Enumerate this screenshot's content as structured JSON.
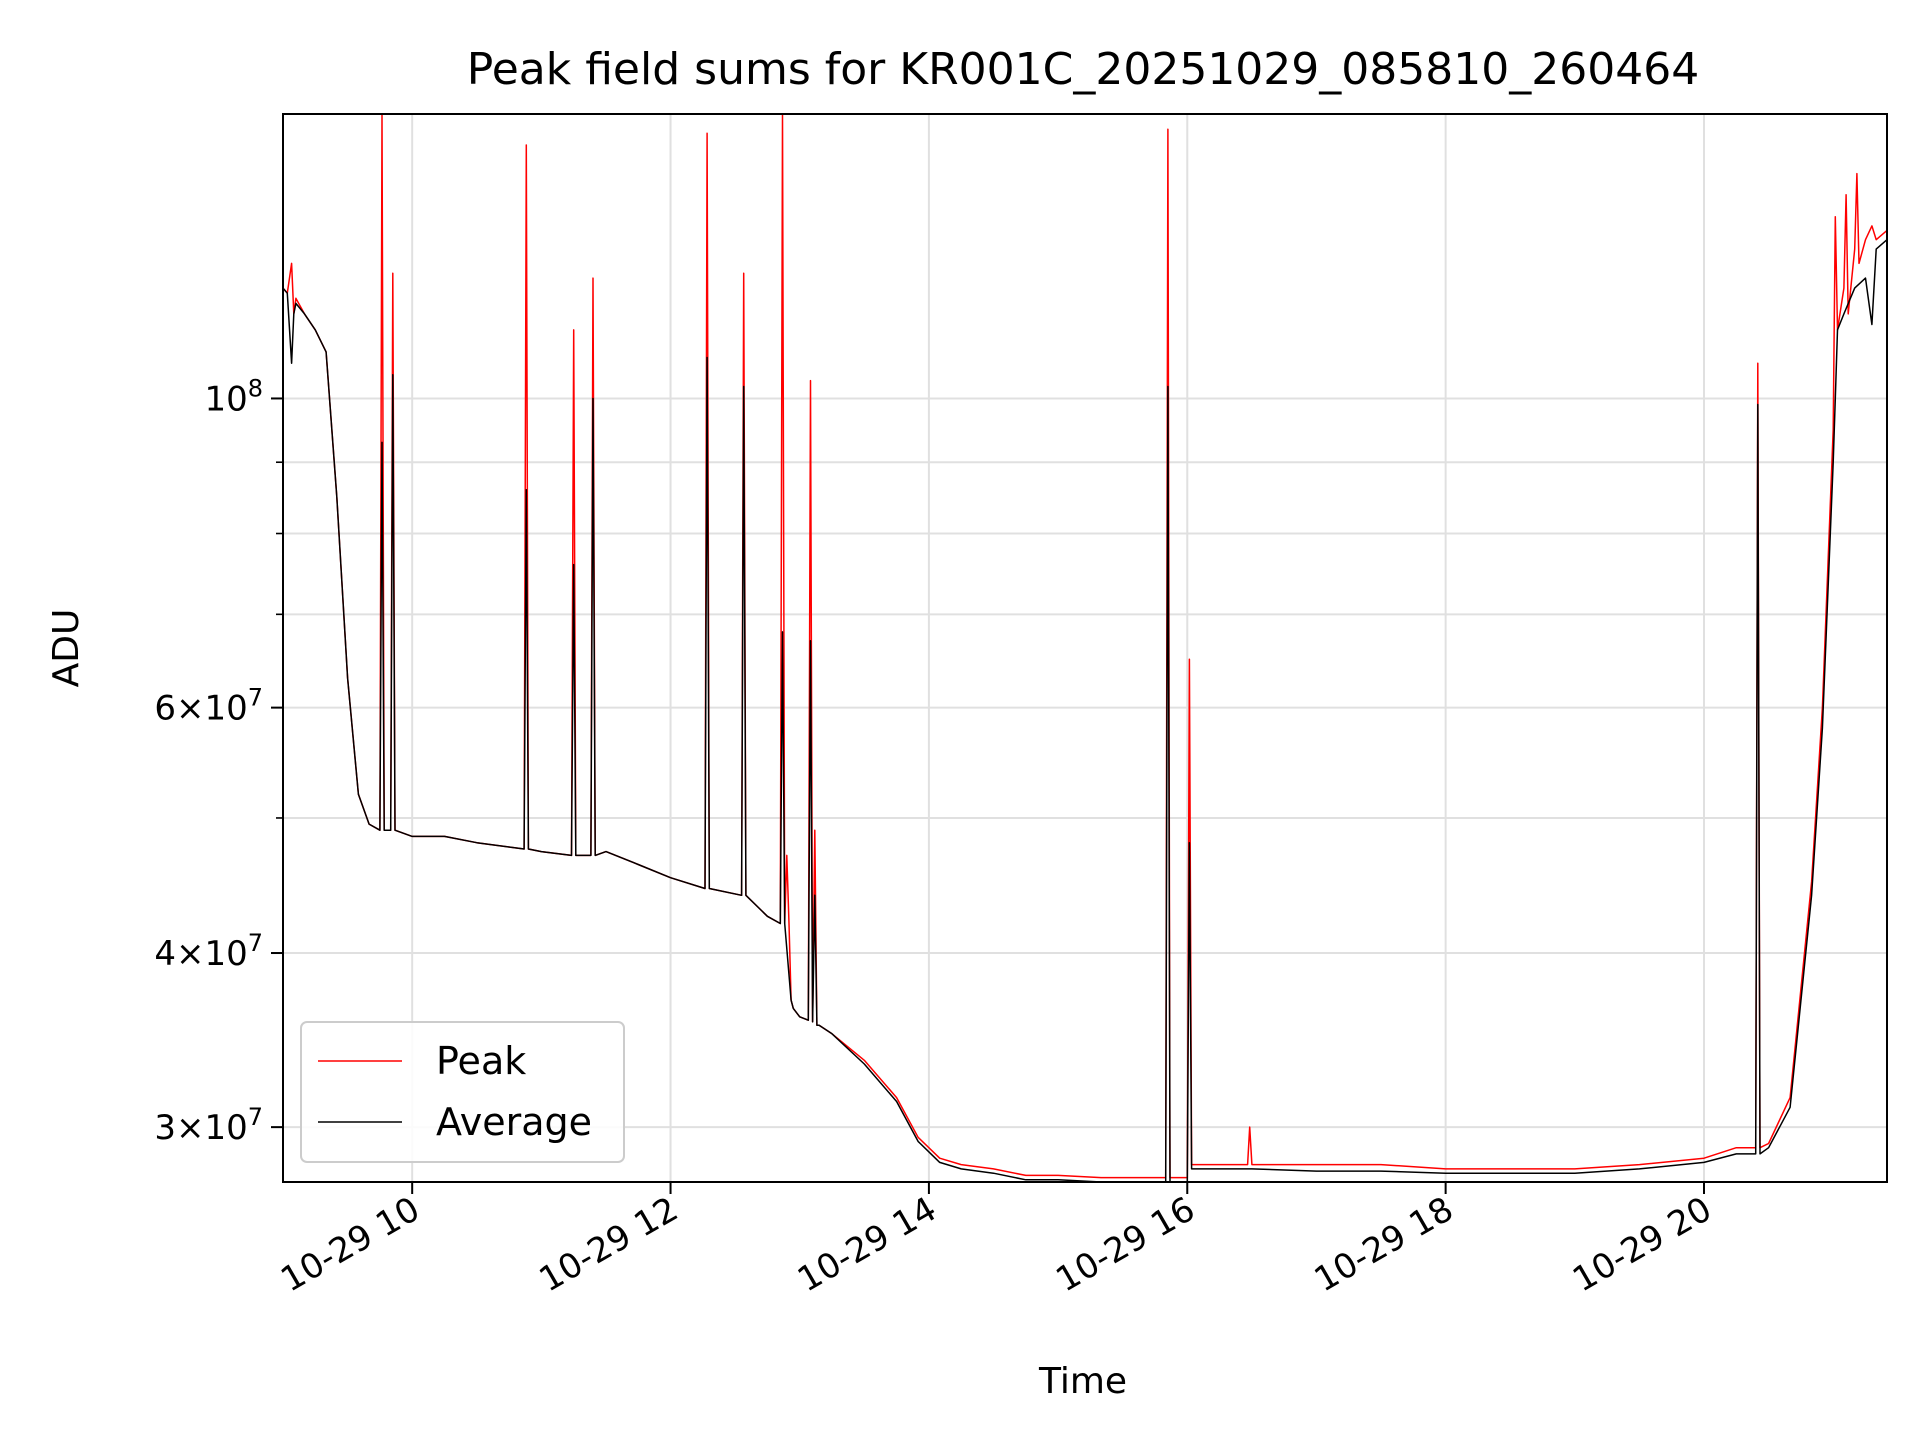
{
  "chart_data": {
    "type": "line",
    "title": "Peak field sums for KR001C_20251029_085810_260464",
    "xlabel": "Time",
    "ylabel": "ADU",
    "x_scale": "time",
    "y_scale": "log",
    "xlim": [
      "2025-10-29 09:00",
      "2025-10-29 21:25"
    ],
    "ylim": [
      27400000,
      160000000
    ],
    "grid": true,
    "legend_position": "lower-left",
    "colors": {
      "Peak": "#ff0000",
      "Average": "#000000"
    },
    "x_ticks": [
      {
        "value": "2025-10-29 10:00",
        "label": "10-29 10"
      },
      {
        "value": "2025-10-29 12:00",
        "label": "10-29 12"
      },
      {
        "value": "2025-10-29 14:00",
        "label": "10-29 14"
      },
      {
        "value": "2025-10-29 16:00",
        "label": "10-29 16"
      },
      {
        "value": "2025-10-29 18:00",
        "label": "10-29 18"
      },
      {
        "value": "2025-10-29 20:00",
        "label": "10-29 20"
      }
    ],
    "y_ticks": [
      {
        "value": 30000000,
        "mant": "3",
        "exp": "7"
      },
      {
        "value": 40000000,
        "mant": "4",
        "exp": "7"
      },
      {
        "value": 60000000,
        "mant": "6",
        "exp": "7"
      },
      {
        "value": 100000000,
        "mant": "",
        "exp": "8"
      }
    ],
    "y_minor_ticks": [
      50000000,
      70000000,
      80000000,
      90000000
    ],
    "series": [
      {
        "name": "Peak",
        "x": [
          "2025-10-29 09:00",
          "2025-10-29 09:02",
          "2025-10-29 09:04",
          "2025-10-29 09:05",
          "2025-10-29 09:06",
          "2025-10-29 09:10",
          "2025-10-29 09:15",
          "2025-10-29 09:20",
          "2025-10-29 09:25",
          "2025-10-29 09:30",
          "2025-10-29 09:35",
          "2025-10-29 09:40",
          "2025-10-29 09:45",
          "2025-10-29 09:46",
          "2025-10-29 09:47",
          "2025-10-29 09:50",
          "2025-10-29 09:51",
          "2025-10-29 09:52",
          "2025-10-29 10:00",
          "2025-10-29 10:15",
          "2025-10-29 10:30",
          "2025-10-29 10:52",
          "2025-10-29 10:53",
          "2025-10-29 10:54",
          "2025-10-29 11:00",
          "2025-10-29 11:14",
          "2025-10-29 11:15",
          "2025-10-29 11:16",
          "2025-10-29 11:23",
          "2025-10-29 11:24",
          "2025-10-29 11:25",
          "2025-10-29 11:30",
          "2025-10-29 11:45",
          "2025-10-29 12:00",
          "2025-10-29 12:16",
          "2025-10-29 12:17",
          "2025-10-29 12:18",
          "2025-10-29 12:33",
          "2025-10-29 12:34",
          "2025-10-29 12:35",
          "2025-10-29 12:45",
          "2025-10-29 12:51",
          "2025-10-29 12:52",
          "2025-10-29 12:53",
          "2025-10-29 12:54",
          "2025-10-29 12:55",
          "2025-10-29 12:56",
          "2025-10-29 12:57",
          "2025-10-29 13:00",
          "2025-10-29 13:04",
          "2025-10-29 13:05",
          "2025-10-29 13:06",
          "2025-10-29 13:07",
          "2025-10-29 13:08",
          "2025-10-29 13:09",
          "2025-10-29 13:15",
          "2025-10-29 13:30",
          "2025-10-29 13:45",
          "2025-10-29 13:55",
          "2025-10-29 14:05",
          "2025-10-29 14:15",
          "2025-10-29 14:30",
          "2025-10-29 14:45",
          "2025-10-29 15:00",
          "2025-10-29 15:20",
          "2025-10-29 15:40",
          "2025-10-29 15:50",
          "2025-10-29 15:51",
          "2025-10-29 15:52",
          "2025-10-29 15:53",
          "2025-10-29 16:00",
          "2025-10-29 16:01",
          "2025-10-29 16:02",
          "2025-10-29 16:05",
          "2025-10-29 16:28",
          "2025-10-29 16:29",
          "2025-10-29 16:30",
          "2025-10-29 17:00",
          "2025-10-29 17:30",
          "2025-10-29 18:00",
          "2025-10-29 18:30",
          "2025-10-29 19:00",
          "2025-10-29 19:30",
          "2025-10-29 20:00",
          "2025-10-29 20:15",
          "2025-10-29 20:24",
          "2025-10-29 20:25",
          "2025-10-29 20:26",
          "2025-10-29 20:30",
          "2025-10-29 20:40",
          "2025-10-29 20:50",
          "2025-10-29 20:55",
          "2025-10-29 21:00",
          "2025-10-29 21:01",
          "2025-10-29 21:02",
          "2025-10-29 21:05",
          "2025-10-29 21:06",
          "2025-10-29 21:07",
          "2025-10-29 21:10",
          "2025-10-29 21:11",
          "2025-10-29 21:12",
          "2025-10-29 21:15",
          "2025-10-29 21:18",
          "2025-10-29 21:20",
          "2025-10-29 21:25"
        ],
        "y": [
          120000000,
          119000000,
          125000000,
          115000000,
          118000000,
          115000000,
          112000000,
          108000000,
          85000000,
          63000000,
          52000000,
          49500000,
          49000000,
          160000000,
          49000000,
          49000000,
          123000000,
          49000000,
          48500000,
          48500000,
          48000000,
          47500000,
          152000000,
          47500000,
          47300000,
          47000000,
          112000000,
          47000000,
          47000000,
          122000000,
          47000000,
          47300000,
          46300000,
          45300000,
          44500000,
          155000000,
          44500000,
          44000000,
          123000000,
          44000000,
          42500000,
          42000000,
          160000000,
          42000000,
          47000000,
          42000000,
          37000000,
          36500000,
          36000000,
          35800000,
          103000000,
          35700000,
          49000000,
          35500000,
          35500000,
          35000000,
          33500000,
          31500000,
          29500000,
          28500000,
          28200000,
          28000000,
          27700000,
          27700000,
          27600000,
          27600000,
          27600000,
          156000000,
          27600000,
          27600000,
          27600000,
          65000000,
          28200000,
          28200000,
          28200000,
          30000000,
          28200000,
          28200000,
          28200000,
          28000000,
          28000000,
          28000000,
          28200000,
          28500000,
          29000000,
          29000000,
          106000000,
          29000000,
          29200000,
          31500000,
          45000000,
          60000000,
          95000000,
          135000000,
          112000000,
          120000000,
          140000000,
          115000000,
          128000000,
          145000000,
          125000000,
          130000000,
          133000000,
          130000000,
          132000000
        ]
      },
      {
        "name": "Average",
        "x": [
          "2025-10-29 09:00",
          "2025-10-29 09:02",
          "2025-10-29 09:04",
          "2025-10-29 09:05",
          "2025-10-29 09:06",
          "2025-10-29 09:10",
          "2025-10-29 09:15",
          "2025-10-29 09:20",
          "2025-10-29 09:25",
          "2025-10-29 09:30",
          "2025-10-29 09:35",
          "2025-10-29 09:40",
          "2025-10-29 09:45",
          "2025-10-29 09:46",
          "2025-10-29 09:47",
          "2025-10-29 09:50",
          "2025-10-29 09:51",
          "2025-10-29 09:52",
          "2025-10-29 10:00",
          "2025-10-29 10:15",
          "2025-10-29 10:30",
          "2025-10-29 10:52",
          "2025-10-29 10:53",
          "2025-10-29 10:54",
          "2025-10-29 11:00",
          "2025-10-29 11:14",
          "2025-10-29 11:15",
          "2025-10-29 11:16",
          "2025-10-29 11:23",
          "2025-10-29 11:24",
          "2025-10-29 11:25",
          "2025-10-29 11:30",
          "2025-10-29 11:45",
          "2025-10-29 12:00",
          "2025-10-29 12:16",
          "2025-10-29 12:17",
          "2025-10-29 12:18",
          "2025-10-29 12:33",
          "2025-10-29 12:34",
          "2025-10-29 12:35",
          "2025-10-29 12:45",
          "2025-10-29 12:51",
          "2025-10-29 12:52",
          "2025-10-29 12:53",
          "2025-10-29 12:56",
          "2025-10-29 12:57",
          "2025-10-29 13:00",
          "2025-10-29 13:04",
          "2025-10-29 13:05",
          "2025-10-29 13:06",
          "2025-10-29 13:07",
          "2025-10-29 13:08",
          "2025-10-29 13:09",
          "2025-10-29 13:15",
          "2025-10-29 13:30",
          "2025-10-29 13:45",
          "2025-10-29 13:55",
          "2025-10-29 14:05",
          "2025-10-29 14:15",
          "2025-10-29 14:30",
          "2025-10-29 14:45",
          "2025-10-29 15:00",
          "2025-10-29 15:20",
          "2025-10-29 15:40",
          "2025-10-29 15:50",
          "2025-10-29 15:51",
          "2025-10-29 15:52",
          "2025-10-29 15:53",
          "2025-10-29 16:00",
          "2025-10-29 16:01",
          "2025-10-29 16:02",
          "2025-10-29 16:05",
          "2025-10-29 16:30",
          "2025-10-29 17:00",
          "2025-10-29 17:30",
          "2025-10-29 18:00",
          "2025-10-29 18:30",
          "2025-10-29 19:00",
          "2025-10-29 19:30",
          "2025-10-29 20:00",
          "2025-10-29 20:15",
          "2025-10-29 20:24",
          "2025-10-29 20:25",
          "2025-10-29 20:26",
          "2025-10-29 20:30",
          "2025-10-29 20:40",
          "2025-10-29 20:50",
          "2025-10-29 20:55",
          "2025-10-29 21:00",
          "2025-10-29 21:01",
          "2025-10-29 21:02",
          "2025-10-29 21:05",
          "2025-10-29 21:10",
          "2025-10-29 21:15",
          "2025-10-29 21:18",
          "2025-10-29 21:20",
          "2025-10-29 21:25"
        ],
        "y": [
          120000000,
          119000000,
          106000000,
          115000000,
          117000000,
          115000000,
          112000000,
          108000000,
          85000000,
          63000000,
          52000000,
          49500000,
          49000000,
          93000000,
          49000000,
          49000000,
          104000000,
          49000000,
          48500000,
          48500000,
          48000000,
          47500000,
          86000000,
          47500000,
          47300000,
          47000000,
          76000000,
          47000000,
          47000000,
          100000000,
          47000000,
          47300000,
          46300000,
          45300000,
          44500000,
          107000000,
          44500000,
          44000000,
          102000000,
          44000000,
          42500000,
          42000000,
          68000000,
          42000000,
          37000000,
          36500000,
          36000000,
          35800000,
          67000000,
          35700000,
          44000000,
          35500000,
          35500000,
          35000000,
          33300000,
          31300000,
          29300000,
          28300000,
          28000000,
          27800000,
          27500000,
          27500000,
          27400000,
          27400000,
          27400000,
          102000000,
          27400000,
          27400000,
          27400000,
          48000000,
          28000000,
          28000000,
          28000000,
          27900000,
          27900000,
          27800000,
          27800000,
          27800000,
          28000000,
          28300000,
          28700000,
          28700000,
          99000000,
          28700000,
          29000000,
          31000000,
          44000000,
          58000000,
          90000000,
          100000000,
          112000000,
          115000000,
          120000000,
          122000000,
          113000000,
          128000000,
          130000000
        ]
      }
    ]
  }
}
